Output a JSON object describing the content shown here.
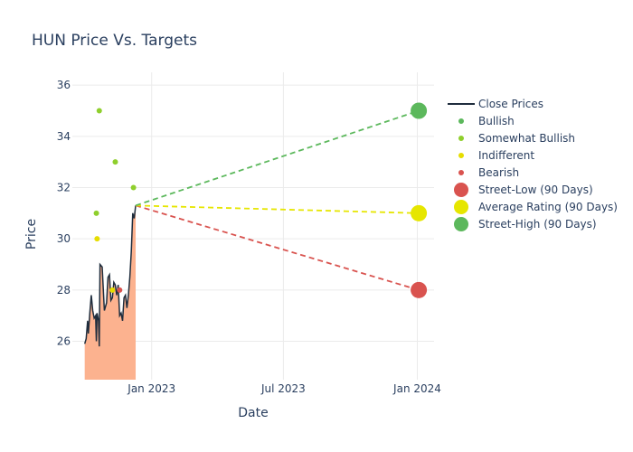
{
  "chart_data": {
    "type": "line",
    "title": "HUN Price Vs. Targets",
    "xlabel": "Date",
    "ylabel": "Price",
    "xlim": [
      "2022-09-14",
      "2024-01-24"
    ],
    "ylim": [
      24.5,
      36.5
    ],
    "x_ticks": [
      {
        "date": "2023-01-01",
        "label": "Jan 2023"
      },
      {
        "date": "2023-07-01",
        "label": "Jul 2023"
      },
      {
        "date": "2024-01-01",
        "label": "Jan 2024"
      }
    ],
    "y_ticks": [
      26,
      28,
      30,
      32,
      34,
      36
    ],
    "grid": true,
    "legend_position": "right",
    "close_prices": {
      "name": "Close Prices",
      "color": "#1f2d3d",
      "fill_color": "#fcb28f",
      "points": [
        [
          "2022-10-01",
          25.9
        ],
        [
          "2022-10-03",
          26.1
        ],
        [
          "2022-10-05",
          26.8
        ],
        [
          "2022-10-06",
          26.3
        ],
        [
          "2022-10-08",
          27.1
        ],
        [
          "2022-10-10",
          27.8
        ],
        [
          "2022-10-12",
          27.2
        ],
        [
          "2022-10-14",
          26.9
        ],
        [
          "2022-10-16",
          27.0
        ],
        [
          "2022-10-17",
          26.0
        ],
        [
          "2022-10-18",
          27.1
        ],
        [
          "2022-10-20",
          26.8
        ],
        [
          "2022-10-21",
          25.8
        ],
        [
          "2022-10-22",
          29.0
        ],
        [
          "2022-10-25",
          28.9
        ],
        [
          "2022-10-28",
          27.2
        ],
        [
          "2022-10-31",
          27.5
        ],
        [
          "2022-11-02",
          28.5
        ],
        [
          "2022-11-04",
          28.6
        ],
        [
          "2022-11-06",
          27.6
        ],
        [
          "2022-11-08",
          27.7
        ],
        [
          "2022-11-10",
          28.3
        ],
        [
          "2022-11-12",
          28.2
        ],
        [
          "2022-11-14",
          27.8
        ],
        [
          "2022-11-16",
          28.2
        ],
        [
          "2022-11-18",
          27.0
        ],
        [
          "2022-11-20",
          27.1
        ],
        [
          "2022-11-22",
          26.8
        ],
        [
          "2022-11-24",
          27.7
        ],
        [
          "2022-11-26",
          27.8
        ],
        [
          "2022-11-28",
          27.3
        ],
        [
          "2022-11-30",
          27.8
        ],
        [
          "2022-12-02",
          28.5
        ],
        [
          "2022-12-04",
          29.5
        ],
        [
          "2022-12-06",
          31.0
        ],
        [
          "2022-12-08",
          30.8
        ],
        [
          "2022-12-10",
          31.3
        ]
      ]
    },
    "analyst_ratings": [
      {
        "name": "Bullish",
        "color": "#5cb85c",
        "points": []
      },
      {
        "name": "Somewhat Bullish",
        "color": "#8fcf2d",
        "points": [
          [
            "2022-10-17",
            31.0
          ],
          [
            "2022-10-21",
            35.0
          ],
          [
            "2022-11-12",
            33.0
          ],
          [
            "2022-12-07",
            32.0
          ]
        ]
      },
      {
        "name": "Indifferent",
        "color": "#e6dd00",
        "points": [
          [
            "2022-10-18",
            30.0
          ],
          [
            "2022-11-08",
            28.0
          ]
        ]
      },
      {
        "name": "Bearish",
        "color": "#d9534f",
        "points": [
          [
            "2022-11-18",
            28.0
          ]
        ]
      }
    ],
    "targets_90_days": [
      {
        "name": "Street-Low (90 Days)",
        "color": "#d9534f",
        "value": 28.0
      },
      {
        "name": "Average Rating (90 Days)",
        "color": "#e6e600",
        "value": 31.0
      },
      {
        "name": "Street-High (90 Days)",
        "color": "#5cb85c",
        "value": 35.0
      }
    ],
    "target_date": "2024-01-03",
    "projection_start": [
      "2022-12-10",
      31.3
    ]
  }
}
